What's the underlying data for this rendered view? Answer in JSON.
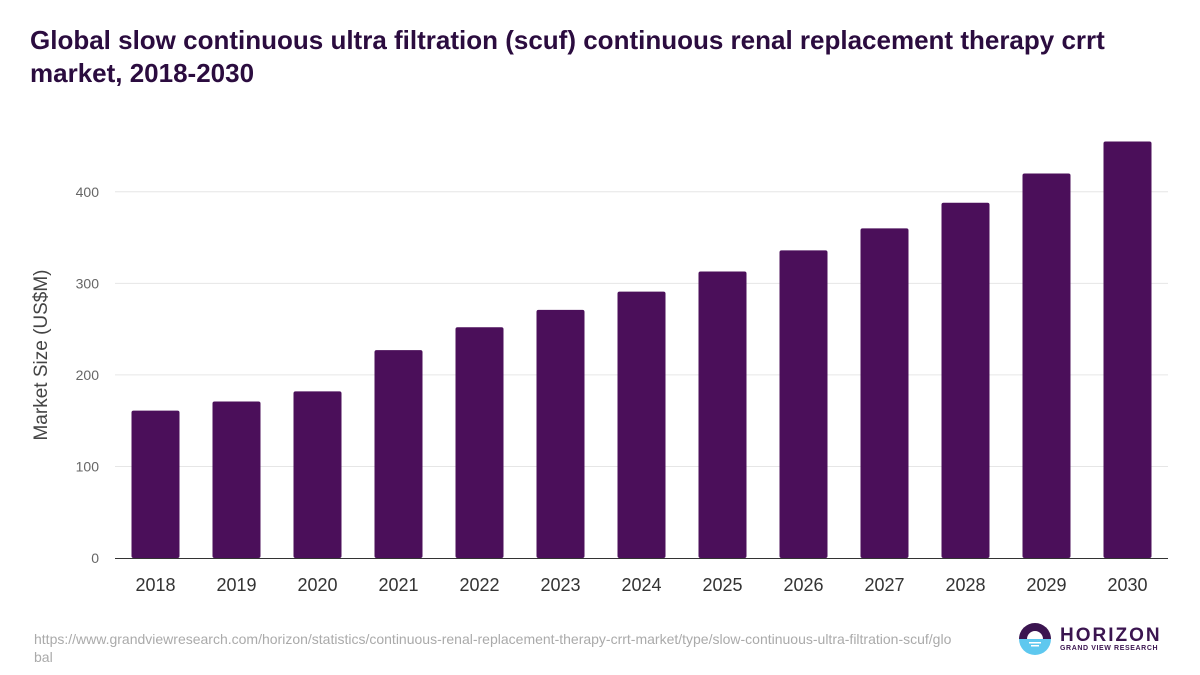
{
  "chart_data": {
    "type": "bar",
    "title": "Global slow continuous ultra filtration (scuf) continuous renal replacement therapy crrt market, 2018-2030",
    "xlabel": "",
    "ylabel": "Market Size (US$M)",
    "ylim": [
      0,
      480
    ],
    "yticks": [
      0,
      100,
      200,
      300,
      400
    ],
    "grid": true,
    "categories": [
      "2018",
      "2019",
      "2020",
      "2021",
      "2022",
      "2023",
      "2024",
      "2025",
      "2026",
      "2027",
      "2028",
      "2029",
      "2030"
    ],
    "values": [
      161,
      171,
      182,
      227,
      252,
      271,
      291,
      313,
      336,
      360,
      388,
      420,
      455
    ],
    "color": "#4b0f5a"
  },
  "source": "https://www.grandviewresearch.com/horizon/statistics/continuous-renal-replacement-therapy-crrt-market/type/slow-continuous-ultra-filtration-scuf/global",
  "logo": {
    "name": "HORIZON",
    "sub": "GRAND VIEW RESEARCH"
  }
}
